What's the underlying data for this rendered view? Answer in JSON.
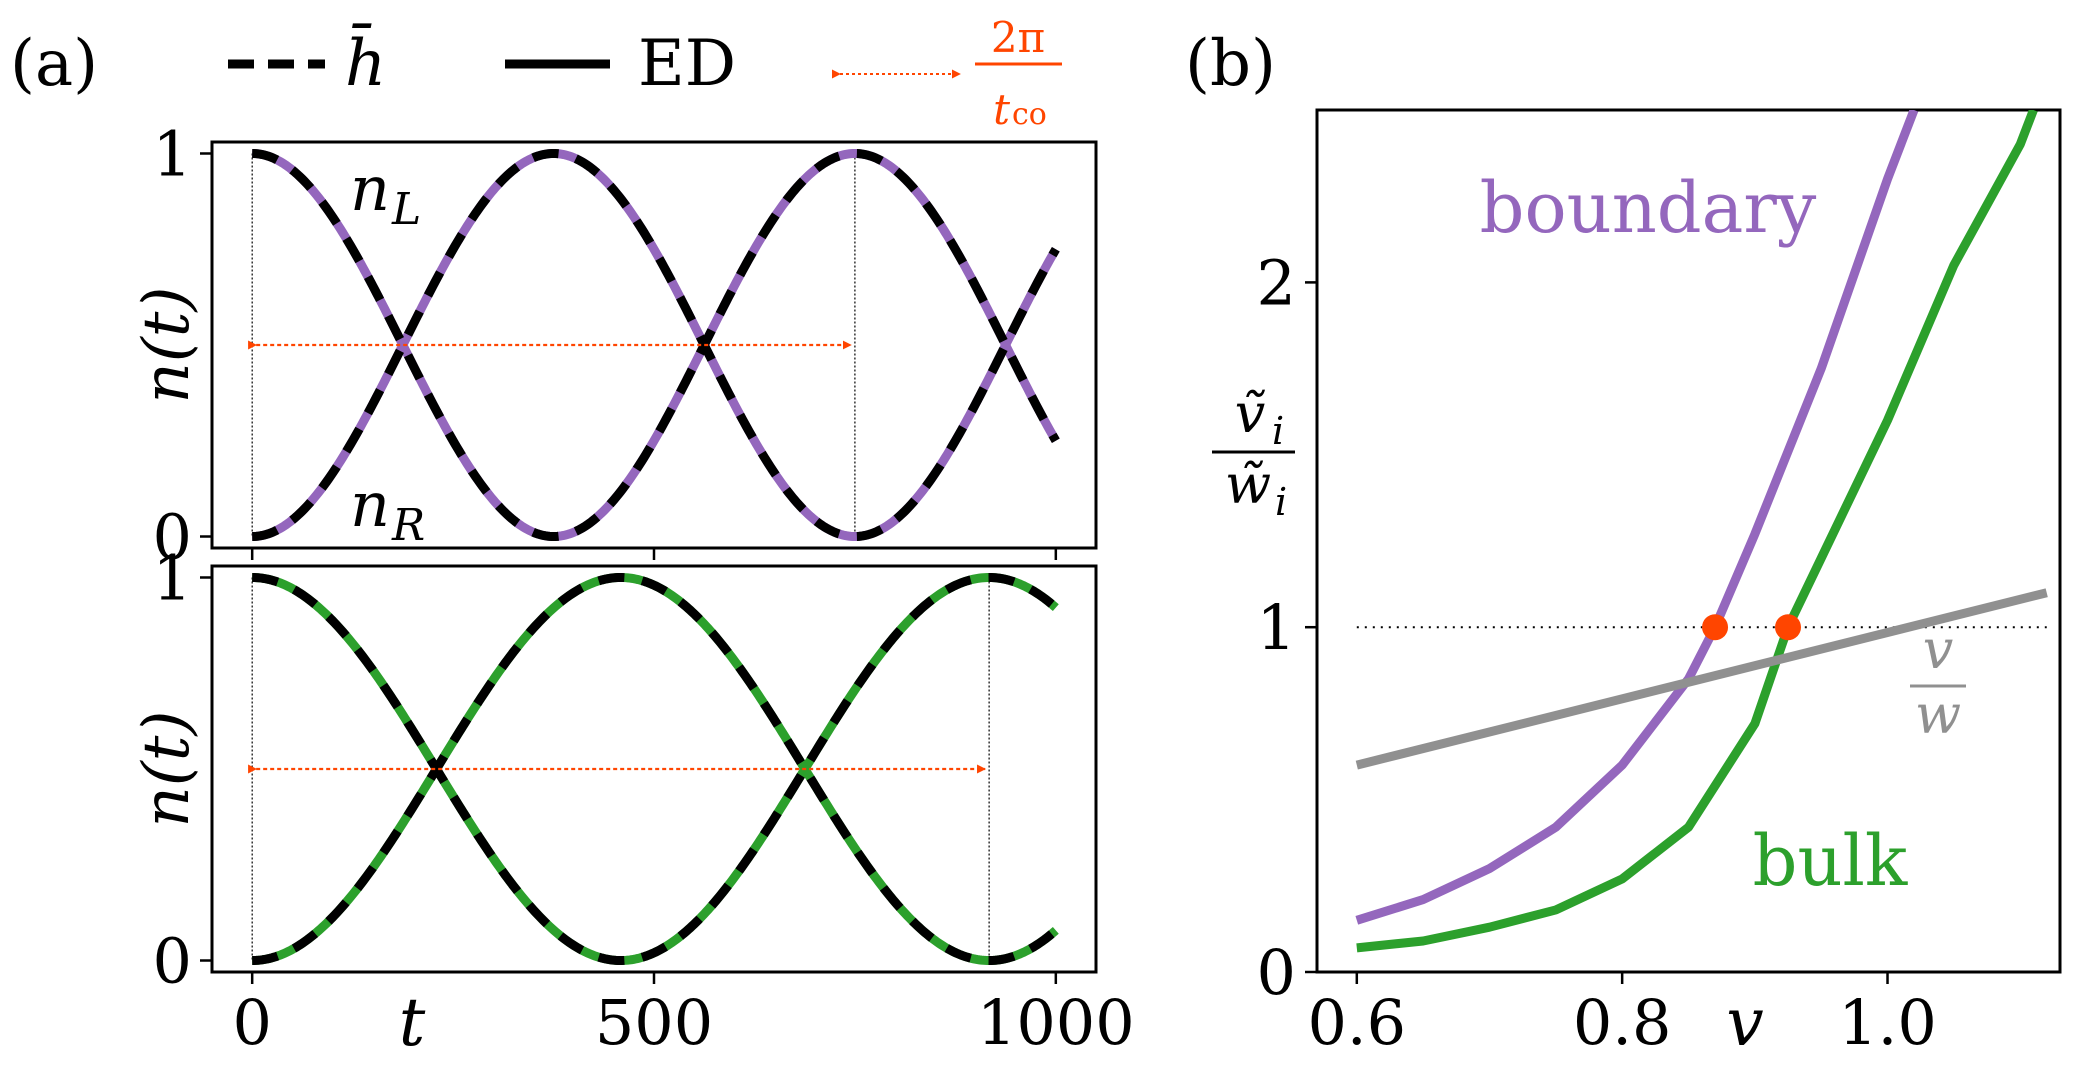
{
  "colors": {
    "purple": "#9467bd",
    "green": "#2ca02c",
    "orange": "#ff4500",
    "gray": "#909090",
    "black": "#000000"
  },
  "legend": {
    "dashed_label": "h̄",
    "solid_label": "ED",
    "arrow_num": "2π",
    "arrow_den": "t",
    "arrow_den_sub": "co"
  },
  "panel_a": {
    "label": "(a)",
    "ylabel": "n(t)",
    "xlabel": "t",
    "label_nL": "n",
    "label_nL_sub": "L",
    "label_nR": "n",
    "label_nR_sub": "R"
  },
  "panel_b": {
    "label": "(b)",
    "ylabel_num": "ṽ",
    "ylabel_num_sub": "i",
    "ylabel_den": "w̃",
    "ylabel_den_sub": "i",
    "xlabel": "v",
    "label_boundary": "boundary",
    "label_bulk": "bulk",
    "label_vw_num": "v",
    "label_vw_den": "w"
  },
  "chart_data": [
    {
      "type": "line",
      "title": "(a) top",
      "xlim": [
        -50,
        1050
      ],
      "ylim": [
        -0.03,
        1.03
      ],
      "xticks": [
        0,
        500,
        1000
      ],
      "yticks": [
        0,
        1
      ],
      "ytick_labels": [
        "0",
        "1"
      ],
      "x_start": 0,
      "x_end": 1000,
      "period": 750,
      "series": [
        {
          "name": "n_L (ED)",
          "style": "solid",
          "color": "purple",
          "form": "cos2"
        },
        {
          "name": "n_R (ED)",
          "style": "solid",
          "color": "purple",
          "form": "sin2"
        },
        {
          "name": "n_L (h̄)",
          "style": "dashed",
          "color": "black",
          "form": "cos2"
        },
        {
          "name": "n_R (h̄)",
          "style": "dashed",
          "color": "black",
          "form": "sin2"
        }
      ],
      "period_arrow": {
        "from": 0,
        "to": 750,
        "y": 0.5
      },
      "vlines": [
        0,
        750
      ]
    },
    {
      "type": "line",
      "title": "(a) bottom",
      "xlim": [
        -50,
        1050
      ],
      "ylim": [
        -0.03,
        1.03
      ],
      "xticks": [
        0,
        500,
        1000
      ],
      "xtick_labels": [
        "0",
        "500",
        "1000"
      ],
      "yticks": [
        0,
        1
      ],
      "ytick_labels": [
        "0",
        "1"
      ],
      "x_start": 0,
      "x_end": 1000,
      "period": 917,
      "series": [
        {
          "name": "n_L (ED)",
          "style": "solid",
          "color": "green",
          "form": "cos2"
        },
        {
          "name": "n_R (ED)",
          "style": "solid",
          "color": "green",
          "form": "sin2"
        },
        {
          "name": "n_L (h̄)",
          "style": "dashed",
          "color": "black",
          "form": "cos2"
        },
        {
          "name": "n_R (h̄)",
          "style": "dashed",
          "color": "black",
          "form": "sin2"
        }
      ],
      "period_arrow": {
        "from": 0,
        "to": 917,
        "y": 0.5
      },
      "vlines": [
        0,
        917
      ]
    },
    {
      "type": "line",
      "title": "(b)",
      "xlabel": "v",
      "xlim": [
        0.57,
        1.13
      ],
      "ylim": [
        0,
        2.5
      ],
      "xticks": [
        0.6,
        0.8,
        1.0
      ],
      "xtick_labels": [
        "0.6",
        "0.8",
        "1.0"
      ],
      "yticks": [
        0,
        1,
        2
      ],
      "ytick_labels": [
        "0",
        "1",
        "2"
      ],
      "series": [
        {
          "name": "boundary",
          "color": "purple",
          "x": [
            0.6,
            0.65,
            0.7,
            0.75,
            0.8,
            0.85,
            0.87,
            0.9,
            0.95,
            1.0,
            1.02
          ],
          "y": [
            0.15,
            0.21,
            0.3,
            0.42,
            0.6,
            0.85,
            1.0,
            1.27,
            1.75,
            2.3,
            2.5
          ]
        },
        {
          "name": "bulk",
          "color": "green",
          "x": [
            0.6,
            0.65,
            0.7,
            0.75,
            0.8,
            0.85,
            0.9,
            0.925,
            0.95,
            1.0,
            1.05,
            1.1,
            1.11
          ],
          "y": [
            0.07,
            0.09,
            0.13,
            0.18,
            0.27,
            0.42,
            0.72,
            1.0,
            1.2,
            1.6,
            2.05,
            2.4,
            2.5
          ]
        },
        {
          "name": "v/w",
          "color": "gray",
          "x": [
            0.6,
            1.12
          ],
          "y": [
            0.6,
            1.1
          ]
        }
      ],
      "hline": {
        "y": 1,
        "x_from": 0.6,
        "x_to": 1.12,
        "style": "dotted"
      },
      "points": [
        {
          "x": 0.87,
          "y": 1.0,
          "color": "orange"
        },
        {
          "x": 0.925,
          "y": 1.0,
          "color": "orange"
        }
      ]
    }
  ]
}
